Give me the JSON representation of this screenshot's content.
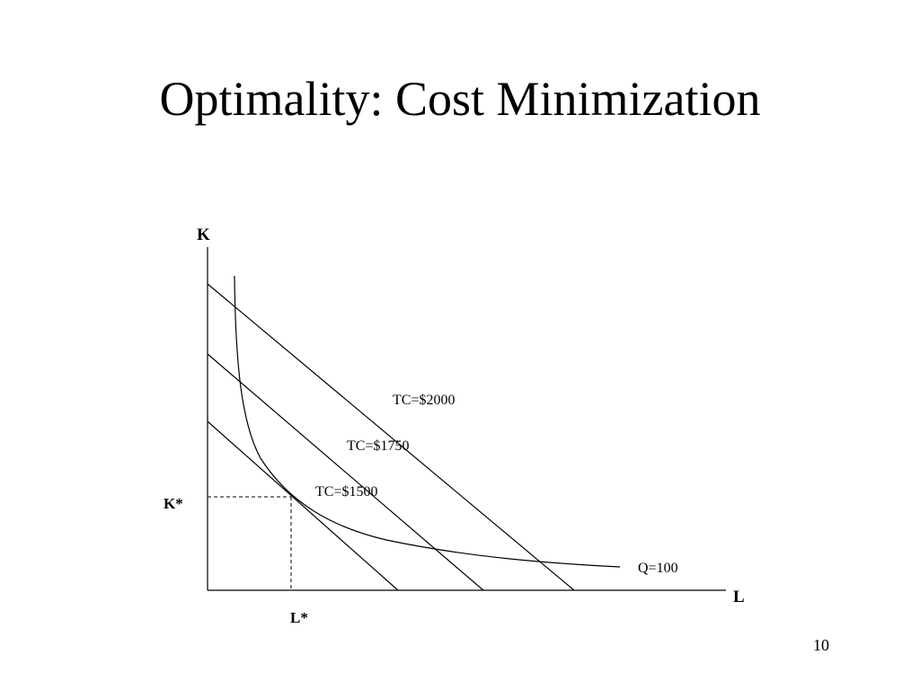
{
  "slide": {
    "title": "Optimality: Cost Minimization",
    "page_number": "10"
  },
  "diagram": {
    "y_axis_label": "K",
    "x_axis_label": "L",
    "isoquant_label": "Q=100",
    "isocost_labels": [
      "TC=$1500",
      "TC=$1750",
      "TC=$2000"
    ],
    "optimal_k_label": "K*",
    "optimal_l_label": "L*"
  }
}
